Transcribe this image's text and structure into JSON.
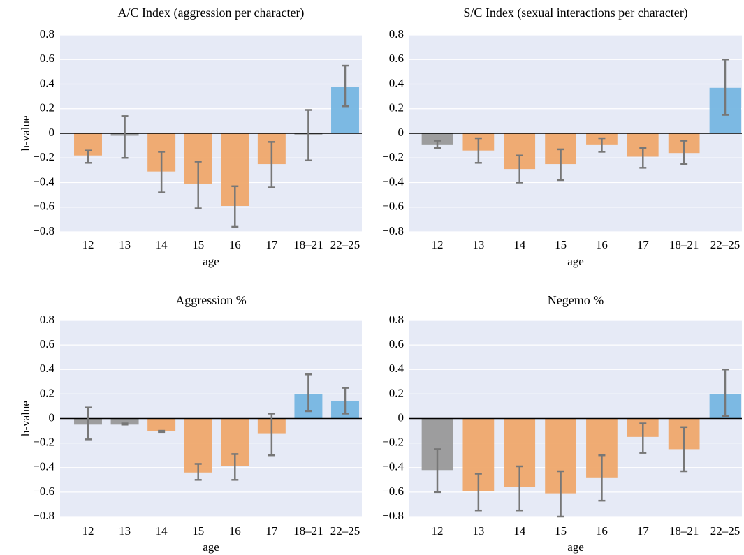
{
  "chart_data": [
    {
      "type": "bar",
      "title": "A/C Index (aggression per character)",
      "xlabel": "age",
      "ylabel": "h-value",
      "categories": [
        "12",
        "13",
        "14",
        "15",
        "16",
        "17",
        "18–21",
        "22–25"
      ],
      "values": [
        -0.18,
        -0.02,
        -0.31,
        -0.41,
        -0.59,
        -0.25,
        -0.01,
        0.38
      ],
      "ci_low": [
        -0.24,
        -0.2,
        -0.48,
        -0.61,
        -0.76,
        -0.44,
        -0.22,
        0.22
      ],
      "ci_high": [
        -0.14,
        0.14,
        -0.15,
        -0.23,
        -0.43,
        -0.07,
        0.19,
        0.55
      ],
      "colors": [
        "#efa86c",
        "#999999",
        "#efa86c",
        "#efa86c",
        "#efa86c",
        "#efa86c",
        "#999999",
        "#76b6e2"
      ],
      "ylim": [
        -0.8,
        0.8
      ],
      "yticks": [
        {
          "value": -0.8,
          "label": "−0.8"
        },
        {
          "value": -0.6,
          "label": "−0.6"
        },
        {
          "value": -0.4,
          "label": "−0.4"
        },
        {
          "value": -0.2,
          "label": "−0.2"
        },
        0,
        0.2,
        0.4,
        0.6,
        0.8
      ],
      "grid": true
    },
    {
      "type": "bar",
      "title": "S/C Index (sexual interactions per character)",
      "xlabel": "age",
      "categories": [
        "12",
        "13",
        "14",
        "15",
        "16",
        "17",
        "18–21",
        "22–25"
      ],
      "values": [
        -0.09,
        -0.14,
        -0.29,
        -0.25,
        -0.09,
        -0.19,
        -0.16,
        0.37
      ],
      "ci_low": [
        -0.12,
        -0.24,
        -0.4,
        -0.38,
        -0.15,
        -0.28,
        -0.25,
        0.15
      ],
      "ci_high": [
        -0.06,
        -0.04,
        -0.18,
        -0.13,
        -0.04,
        -0.12,
        -0.06,
        0.6
      ],
      "colors": [
        "#999999",
        "#efa86c",
        "#efa86c",
        "#efa86c",
        "#efa86c",
        "#efa86c",
        "#efa86c",
        "#76b6e2"
      ],
      "ylim": [
        -0.8,
        0.8
      ],
      "yticks": [
        {
          "value": -0.8,
          "label": "−0.8"
        },
        {
          "value": -0.6,
          "label": "−0.6"
        },
        {
          "value": -0.4,
          "label": "−0.4"
        },
        {
          "value": -0.2,
          "label": "−0.2"
        },
        0,
        0.2,
        0.4,
        0.6,
        0.8
      ],
      "grid": true
    },
    {
      "type": "bar",
      "title": "Aggression %",
      "xlabel": "age",
      "ylabel": "h-value",
      "categories": [
        "12",
        "13",
        "14",
        "15",
        "16",
        "17",
        "18–21",
        "22–25"
      ],
      "values": [
        -0.05,
        -0.05,
        -0.1,
        -0.44,
        -0.39,
        -0.12,
        0.2,
        0.14
      ],
      "ci_low": [
        -0.17,
        -0.05,
        -0.11,
        -0.5,
        -0.5,
        -0.3,
        0.06,
        0.04
      ],
      "ci_high": [
        0.09,
        -0.04,
        -0.1,
        -0.37,
        -0.29,
        0.04,
        0.36,
        0.25
      ],
      "colors": [
        "#999999",
        "#999999",
        "#efa86c",
        "#efa86c",
        "#efa86c",
        "#efa86c",
        "#76b6e2",
        "#76b6e2"
      ],
      "ylim": [
        -0.8,
        0.8
      ],
      "yticks": [
        {
          "value": -0.8,
          "label": "−0.8"
        },
        {
          "value": -0.6,
          "label": "−0.6"
        },
        {
          "value": -0.4,
          "label": "−0.4"
        },
        {
          "value": -0.2,
          "label": "−0.2"
        },
        0,
        0.2,
        0.4,
        0.6,
        0.8
      ],
      "grid": true
    },
    {
      "type": "bar",
      "title": "Negemo %",
      "xlabel": "age",
      "categories": [
        "12",
        "13",
        "14",
        "15",
        "16",
        "17",
        "18–21",
        "22–25"
      ],
      "values": [
        -0.42,
        -0.59,
        -0.56,
        -0.61,
        -0.48,
        -0.15,
        -0.25,
        0.2
      ],
      "ci_low": [
        -0.6,
        -0.75,
        -0.75,
        -0.8,
        -0.67,
        -0.28,
        -0.43,
        0.02
      ],
      "ci_high": [
        -0.25,
        -0.45,
        -0.39,
        -0.43,
        -0.3,
        -0.04,
        -0.07,
        0.4
      ],
      "colors": [
        "#999999",
        "#efa86c",
        "#efa86c",
        "#efa86c",
        "#efa86c",
        "#efa86c",
        "#efa86c",
        "#76b6e2"
      ],
      "ylim": [
        -0.8,
        0.8
      ],
      "yticks": [
        {
          "value": -0.8,
          "label": "−0.8"
        },
        {
          "value": -0.6,
          "label": "−0.6"
        },
        {
          "value": -0.4,
          "label": "−0.4"
        },
        {
          "value": -0.2,
          "label": "−0.2"
        },
        0,
        0.2,
        0.4,
        0.6,
        0.8
      ],
      "grid": true
    }
  ]
}
